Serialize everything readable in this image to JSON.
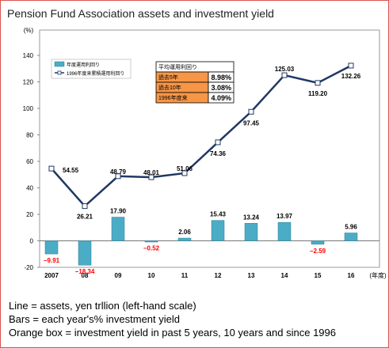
{
  "title": "Pension Fund Association assets and investment yield",
  "chart_data": {
    "type": "bar+line",
    "y_unit": "(%)",
    "x_unit": "(年度)",
    "categories": [
      "2007",
      "08",
      "09",
      "10",
      "11",
      "12",
      "13",
      "14",
      "15",
      "16"
    ],
    "ylim": [
      -20,
      140
    ],
    "yticks": [
      -20,
      0,
      20,
      40,
      60,
      80,
      100,
      120,
      140
    ],
    "series": [
      {
        "name": "年度運用利回り",
        "type": "bar",
        "color": "#4bacc6",
        "values": [
          -9.91,
          -18.34,
          17.9,
          -0.52,
          2.06,
          15.43,
          13.24,
          13.97,
          -2.59,
          5.96
        ],
        "labels": [
          "−9.91",
          "−18.34",
          "17.90",
          "−0.52",
          "2.06",
          "15.43",
          "13.24",
          "13.97",
          "−2.59",
          "5.96"
        ]
      },
      {
        "name": "1996年度来累積運用利回り",
        "type": "line",
        "color": "#1f3864",
        "values": [
          54.55,
          26.21,
          48.79,
          48.01,
          51.06,
          74.36,
          97.45,
          125.03,
          119.2,
          132.26
        ],
        "labels": [
          "54.55",
          "26.21",
          "48.79",
          "48.01",
          "51.06",
          "74.36",
          "97.45",
          "125.03",
          "119.20",
          "132.26"
        ]
      }
    ],
    "negative_label_color": "#ff0000",
    "legend_position": "top-left",
    "inset_table": {
      "header": "平均運用利回り",
      "rows": [
        {
          "label": "過去5年",
          "value": "8.98%"
        },
        {
          "label": "過去10年",
          "value": "3.08%"
        },
        {
          "label": "1996年度来",
          "value": "4.09%"
        }
      ],
      "label_bg": "#f79646",
      "border": "#000000"
    }
  },
  "notes": [
    "Line = assets, yen trllion (left-hand scale)",
    "Bars = each year's% investment yield",
    "Orange box = investment yield in past 5 years, 10 years and since 1996"
  ]
}
